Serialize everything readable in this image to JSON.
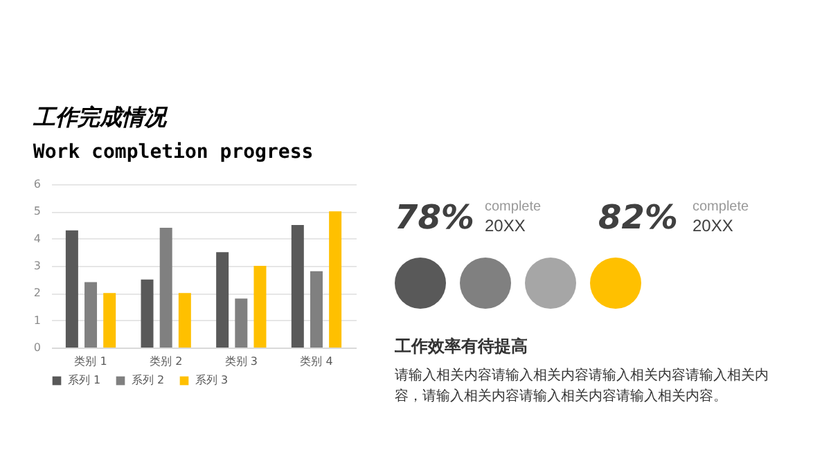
{
  "chart_data": {
    "type": "bar",
    "title": "工作完成情况",
    "subtitle": "Work completion progress",
    "categories": [
      "类别 1",
      "类别 2",
      "类别 3",
      "类别 4"
    ],
    "series": [
      {
        "name": "系列 1",
        "color": "#595959",
        "values": [
          4.3,
          2.5,
          3.5,
          4.5
        ]
      },
      {
        "name": "系列 2",
        "color": "#808080",
        "values": [
          2.4,
          4.4,
          1.8,
          2.8
        ]
      },
      {
        "name": "系列 3",
        "color": "#ffc000",
        "values": [
          2,
          2,
          3,
          5
        ]
      }
    ],
    "ylim": [
      0,
      6
    ],
    "yticks": [
      0,
      1,
      2,
      3,
      4,
      5,
      6
    ],
    "grid": "y",
    "legend": "bottom",
    "annotations": [
      "78%",
      "complete",
      "20XX",
      "82%",
      "complete",
      "20XX",
      "工作效率有待提高",
      "请输入相关内容请输入相关内容请输入相关内容请输入相关内容，请输入相关内容请输入相关内容请输入相关内容。"
    ]
  }
}
